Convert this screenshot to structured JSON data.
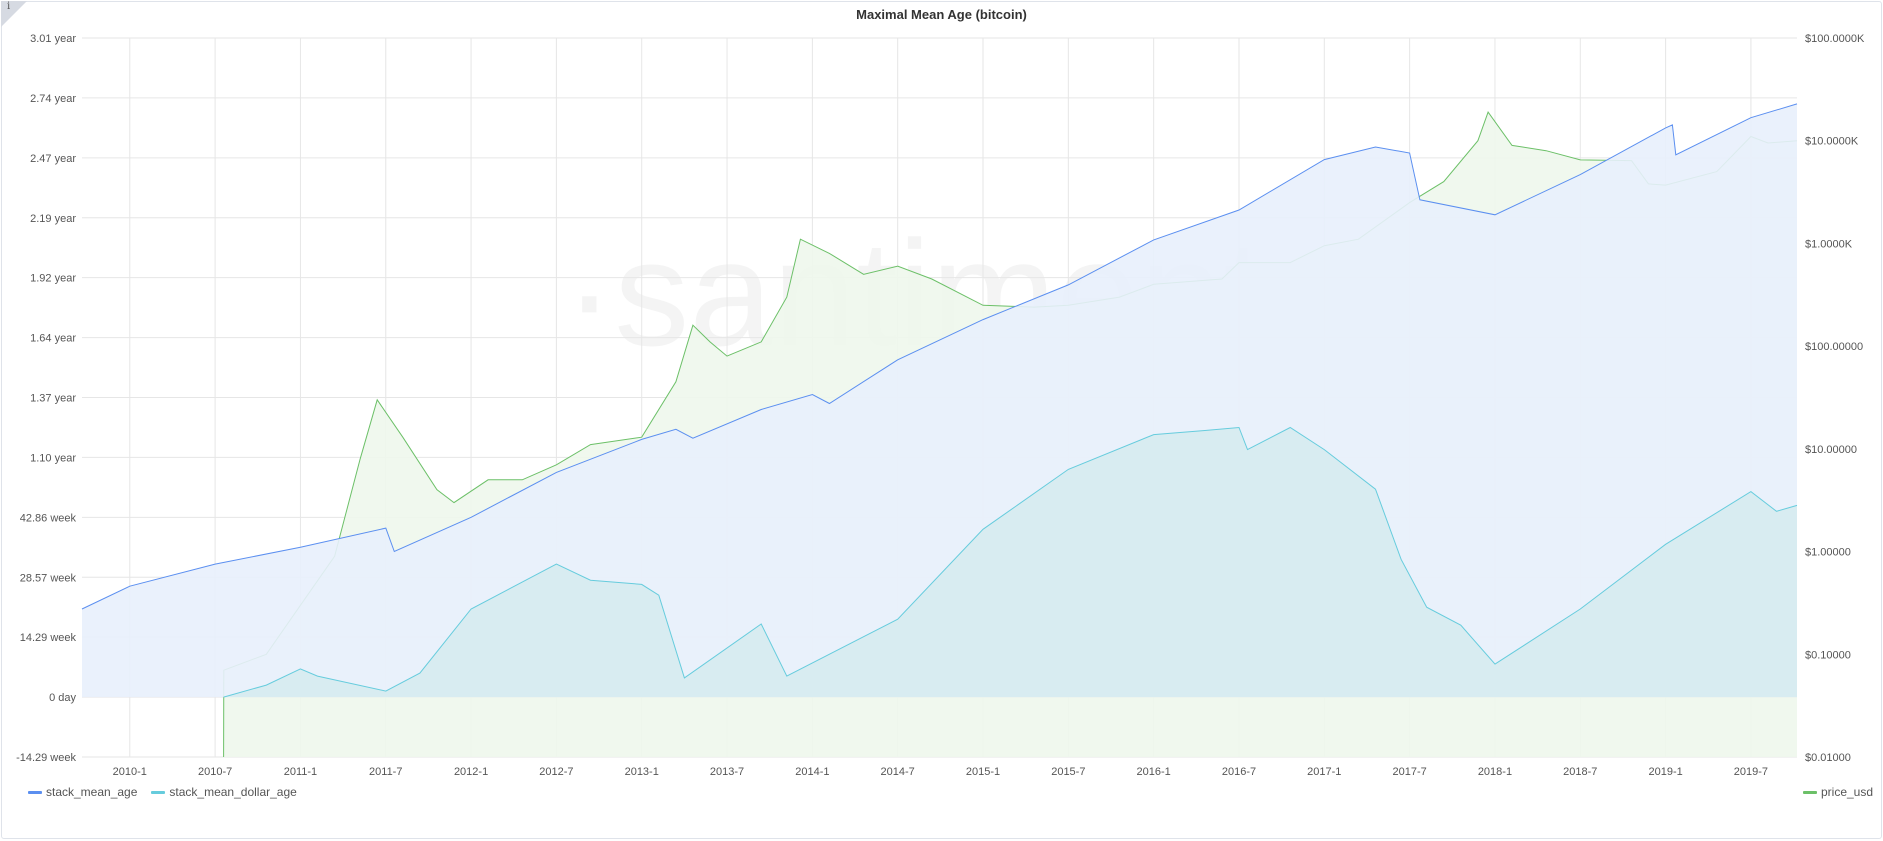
{
  "chart_data": {
    "type": "line",
    "title": "Maximal Mean Age (bitcoin)",
    "watermark": "·santiment·",
    "x_ticks": [
      "2010-1",
      "2010-7",
      "2011-1",
      "2011-7",
      "2012-1",
      "2012-7",
      "2013-1",
      "2013-7",
      "2014-1",
      "2014-7",
      "2015-1",
      "2015-7",
      "2016-1",
      "2016-7",
      "2017-1",
      "2017-7",
      "2018-1",
      "2018-7",
      "2019-1",
      "2019-7"
    ],
    "x_range": [
      2009.72,
      2019.77
    ],
    "y_left_ticks": [
      "3.01 year",
      "2.74 year",
      "2.47 year",
      "2.19 year",
      "1.92 year",
      "1.64 year",
      "1.37 year",
      "1.10 year",
      "42.86 week",
      "28.57 week",
      "14.29 week",
      "0 day",
      "-14.29 week"
    ],
    "y_left_range_days": [
      -100,
      1100
    ],
    "y_right_ticks": [
      "$100.0000K",
      "$10.0000K",
      "$1.0000K",
      "$100.00000",
      "$10.00000",
      "$1.00000",
      "$0.10000",
      "$0.01000"
    ],
    "y_right_range_usd_log": [
      0.01,
      100000
    ],
    "grid": true,
    "series": [
      {
        "name": "stack_mean_age",
        "axis": "left",
        "unit": "days",
        "color": "#5b8ff0",
        "fill": "#e8f0fc",
        "points": [
          [
            2009.72,
            147
          ],
          [
            2010.0,
            185
          ],
          [
            2010.5,
            222
          ],
          [
            2011.0,
            250
          ],
          [
            2011.5,
            282
          ],
          [
            2011.55,
            243
          ],
          [
            2012.0,
            300
          ],
          [
            2012.5,
            375
          ],
          [
            2013.0,
            430
          ],
          [
            2013.2,
            447
          ],
          [
            2013.3,
            432
          ],
          [
            2013.7,
            480
          ],
          [
            2014.0,
            505
          ],
          [
            2014.1,
            490
          ],
          [
            2014.5,
            563
          ],
          [
            2015.0,
            630
          ],
          [
            2015.5,
            688
          ],
          [
            2016.0,
            763
          ],
          [
            2016.5,
            813
          ],
          [
            2017.0,
            897
          ],
          [
            2017.3,
            918
          ],
          [
            2017.5,
            908
          ],
          [
            2017.56,
            830
          ],
          [
            2018.0,
            805
          ],
          [
            2018.5,
            872
          ],
          [
            2019.0,
            950
          ],
          [
            2019.04,
            955
          ],
          [
            2019.06,
            905
          ],
          [
            2019.5,
            967
          ],
          [
            2019.77,
            990
          ]
        ]
      },
      {
        "name": "stack_mean_dollar_age",
        "axis": "left",
        "unit": "days",
        "color": "#66ccdd",
        "fill": "#d5ebef",
        "points": [
          [
            2010.55,
            0
          ],
          [
            2010.8,
            20
          ],
          [
            2011.0,
            47
          ],
          [
            2011.1,
            35
          ],
          [
            2011.5,
            10
          ],
          [
            2011.7,
            40
          ],
          [
            2012.0,
            147
          ],
          [
            2012.5,
            222
          ],
          [
            2012.7,
            195
          ],
          [
            2013.0,
            188
          ],
          [
            2013.1,
            170
          ],
          [
            2013.25,
            32
          ],
          [
            2013.7,
            122
          ],
          [
            2013.85,
            35
          ],
          [
            2014.5,
            130
          ],
          [
            2015.0,
            280
          ],
          [
            2015.5,
            380
          ],
          [
            2016.0,
            438
          ],
          [
            2016.3,
            445
          ],
          [
            2016.5,
            450
          ],
          [
            2016.55,
            413
          ],
          [
            2016.8,
            450
          ],
          [
            2017.0,
            413
          ],
          [
            2017.3,
            347
          ],
          [
            2017.45,
            230
          ],
          [
            2017.6,
            150
          ],
          [
            2017.8,
            120
          ],
          [
            2018.0,
            55
          ],
          [
            2018.5,
            147
          ],
          [
            2019.0,
            255
          ],
          [
            2019.5,
            343
          ],
          [
            2019.65,
            310
          ],
          [
            2019.77,
            320
          ]
        ]
      },
      {
        "name": "price_usd",
        "axis": "right",
        "unit": "usd",
        "color": "#6cc068",
        "fill": "#eef7ec",
        "points": [
          [
            2010.55,
            0.01
          ],
          [
            2010.551,
            0.07
          ],
          [
            2010.8,
            0.1
          ],
          [
            2011.0,
            0.3
          ],
          [
            2011.2,
            0.9
          ],
          [
            2011.35,
            8
          ],
          [
            2011.45,
            30
          ],
          [
            2011.6,
            13
          ],
          [
            2011.8,
            4
          ],
          [
            2011.9,
            3
          ],
          [
            2012.1,
            5
          ],
          [
            2012.3,
            5
          ],
          [
            2012.5,
            7
          ],
          [
            2012.7,
            11
          ],
          [
            2013.0,
            13
          ],
          [
            2013.2,
            45
          ],
          [
            2013.3,
            160
          ],
          [
            2013.4,
            110
          ],
          [
            2013.5,
            80
          ],
          [
            2013.7,
            110
          ],
          [
            2013.85,
            300
          ],
          [
            2013.93,
            1100
          ],
          [
            2014.1,
            800
          ],
          [
            2014.3,
            500
          ],
          [
            2014.5,
            600
          ],
          [
            2014.7,
            450
          ],
          [
            2015.0,
            250
          ],
          [
            2015.3,
            240
          ],
          [
            2015.5,
            250
          ],
          [
            2015.8,
            300
          ],
          [
            2016.0,
            400
          ],
          [
            2016.4,
            450
          ],
          [
            2016.5,
            650
          ],
          [
            2016.8,
            650
          ],
          [
            2017.0,
            950
          ],
          [
            2017.2,
            1100
          ],
          [
            2017.5,
            2500
          ],
          [
            2017.7,
            4000
          ],
          [
            2017.9,
            10000
          ],
          [
            2017.96,
            19000
          ],
          [
            2018.1,
            9000
          ],
          [
            2018.3,
            8000
          ],
          [
            2018.5,
            6500
          ],
          [
            2018.8,
            6400
          ],
          [
            2018.9,
            3800
          ],
          [
            2019.0,
            3700
          ],
          [
            2019.3,
            5000
          ],
          [
            2019.5,
            11000
          ],
          [
            2019.6,
            9500
          ],
          [
            2019.77,
            10000
          ]
        ]
      }
    ],
    "legend": {
      "left": [
        "stack_mean_age",
        "stack_mean_dollar_age"
      ],
      "right": [
        "price_usd"
      ],
      "placement": "bottom"
    }
  }
}
